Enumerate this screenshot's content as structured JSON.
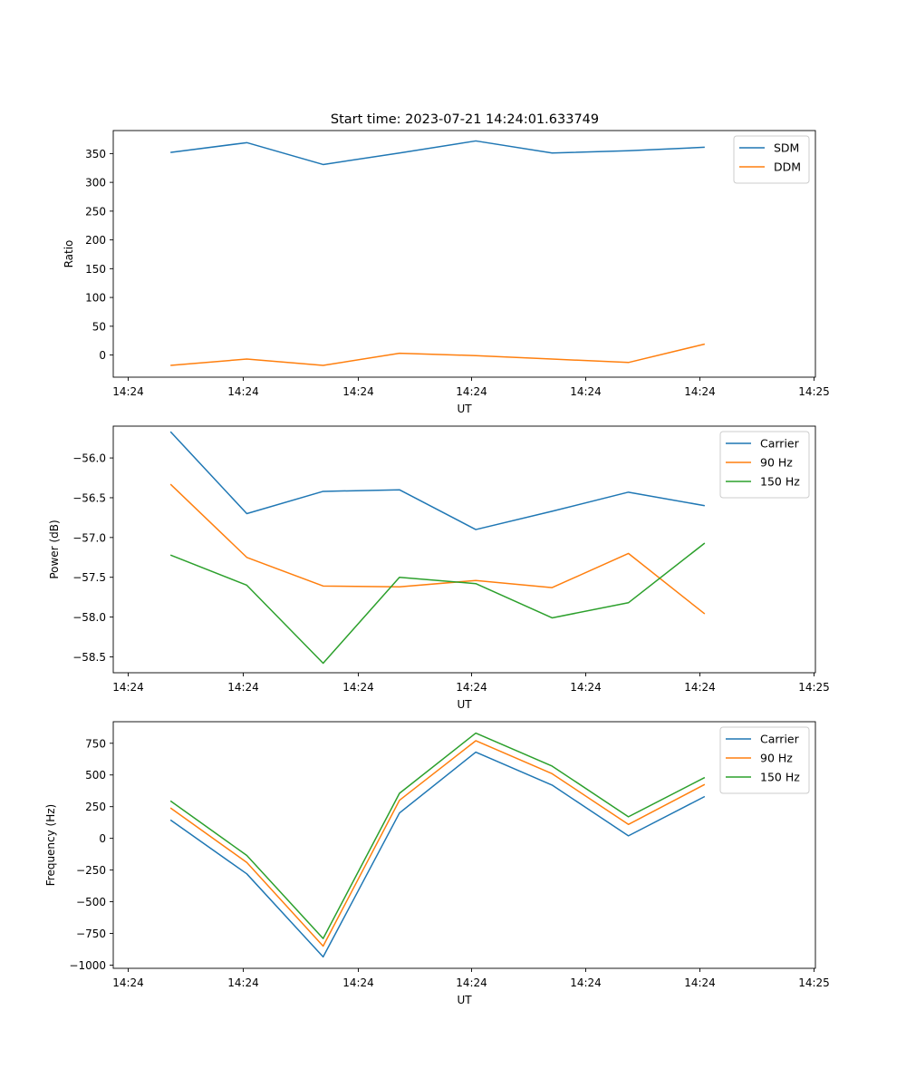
{
  "figure": {
    "title": "Start time: 2023-07-21 14:24:01.633749"
  },
  "chart_data": [
    {
      "type": "line",
      "xlabel": "UT",
      "ylabel": "Ratio",
      "x_tick_labels": [
        "14:24",
        "14:24",
        "14:24",
        "14:24",
        "14:24",
        "14:24",
        "14:25"
      ],
      "x": [
        1,
        2,
        3,
        4,
        5,
        6,
        7,
        8
      ],
      "xlim": [
        0.25,
        9.45
      ],
      "ylim": [
        -38.5,
        390
      ],
      "yticks": [
        0,
        50,
        100,
        150,
        200,
        250,
        300,
        350
      ],
      "ytick_labels": [
        "0",
        "50",
        "100",
        "150",
        "200",
        "250",
        "300",
        "350"
      ],
      "legend_position": "top-right",
      "series": [
        {
          "name": "SDM",
          "color": "#1f77b4",
          "values": [
            352,
            369,
            331,
            351,
            372,
            351,
            355,
            361
          ]
        },
        {
          "name": "DDM",
          "color": "#ff7f0e",
          "values": [
            -18,
            -7,
            -18,
            3,
            -1,
            -7,
            -13,
            19
          ]
        }
      ]
    },
    {
      "type": "line",
      "xlabel": "UT",
      "ylabel": "Power (dB)",
      "x_tick_labels": [
        "14:24",
        "14:24",
        "14:24",
        "14:24",
        "14:24",
        "14:24",
        "14:25"
      ],
      "x": [
        1,
        2,
        3,
        4,
        5,
        6,
        7,
        8
      ],
      "xlim": [
        0.25,
        9.45
      ],
      "ylim": [
        -58.7,
        -55.6
      ],
      "yticks": [
        -58.5,
        -58.0,
        -57.5,
        -57.0,
        -56.5,
        -56.0
      ],
      "ytick_labels": [
        "−58.5",
        "−58.0",
        "−57.5",
        "−57.0",
        "−56.5",
        "−56.0"
      ],
      "legend_position": "top-right",
      "series": [
        {
          "name": "Carrier",
          "color": "#1f77b4",
          "values": [
            -55.67,
            -56.7,
            -56.42,
            -56.4,
            -56.9,
            -56.67,
            -56.43,
            -56.6
          ]
        },
        {
          "name": "90 Hz",
          "color": "#ff7f0e",
          "values": [
            -56.33,
            -57.25,
            -57.61,
            -57.62,
            -57.54,
            -57.63,
            -57.2,
            -57.96
          ]
        },
        {
          "name": "150 Hz",
          "color": "#2ca02c",
          "values": [
            -57.22,
            -57.6,
            -58.58,
            -57.5,
            -57.58,
            -58.01,
            -57.82,
            -57.07
          ]
        }
      ]
    },
    {
      "type": "line",
      "xlabel": "UT",
      "ylabel": "Frequency (Hz)",
      "x_tick_labels": [
        "14:24",
        "14:24",
        "14:24",
        "14:24",
        "14:24",
        "14:24",
        "14:25"
      ],
      "x": [
        1,
        2,
        3,
        4,
        5,
        6,
        7,
        8
      ],
      "xlim": [
        0.25,
        9.45
      ],
      "ylim": [
        -1025,
        920
      ],
      "yticks": [
        -1000,
        -750,
        -500,
        -250,
        0,
        250,
        500,
        750
      ],
      "ytick_labels": [
        "−1000",
        "−750",
        "−500",
        "−250",
        "0",
        "250",
        "500",
        "750"
      ],
      "legend_position": "top-right",
      "series": [
        {
          "name": "Carrier",
          "color": "#1f77b4",
          "values": [
            145,
            -280,
            -935,
            200,
            680,
            420,
            20,
            330
          ]
        },
        {
          "name": "90 Hz",
          "color": "#ff7f0e",
          "values": [
            240,
            -190,
            -850,
            300,
            770,
            510,
            110,
            425
          ]
        },
        {
          "name": "150 Hz",
          "color": "#2ca02c",
          "values": [
            295,
            -135,
            -790,
            355,
            830,
            570,
            170,
            480
          ]
        }
      ]
    }
  ]
}
